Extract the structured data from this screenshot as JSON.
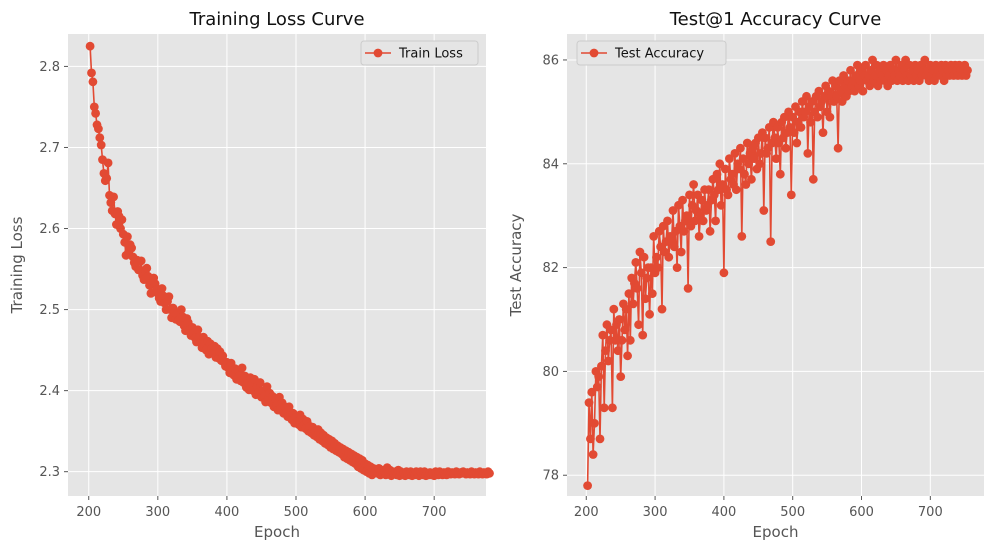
{
  "chart_data": [
    {
      "type": "line",
      "title": "Training Loss Curve",
      "xlabel": "Epoch",
      "ylabel": "Training Loss",
      "xlim": [
        170,
        775
      ],
      "ylim": [
        2.27,
        2.84
      ],
      "xticks": [
        200,
        300,
        400,
        500,
        600,
        700
      ],
      "yticks": [
        2.3,
        2.4,
        2.5,
        2.6,
        2.7,
        2.8
      ],
      "xtick_labels": [
        "200",
        "300",
        "400",
        "500",
        "600",
        "700"
      ],
      "ytick_labels": [
        "2.3",
        "2.4",
        "2.5",
        "2.6",
        "2.7",
        "2.8"
      ],
      "grid": true,
      "legend_position": "top-right",
      "color": "#E24A33",
      "series": [
        {
          "name": "Train Loss",
          "x_start": 202,
          "x_step": 2,
          "values": [
            2.825,
            2.792,
            2.781,
            2.75,
            2.742,
            2.728,
            2.723,
            2.712,
            2.703,
            2.685,
            2.668,
            2.659,
            2.662,
            2.681,
            2.641,
            2.632,
            2.622,
            2.639,
            2.618,
            2.605,
            2.621,
            2.615,
            2.6,
            2.611,
            2.593,
            2.583,
            2.567,
            2.59,
            2.572,
            2.58,
            2.576,
            2.565,
            2.558,
            2.553,
            2.561,
            2.549,
            2.549,
            2.56,
            2.542,
            2.537,
            2.548,
            2.551,
            2.541,
            2.53,
            2.52,
            2.535,
            2.539,
            2.532,
            2.525,
            2.52,
            2.514,
            2.51,
            2.526,
            2.517,
            2.508,
            2.5,
            2.51,
            2.516,
            2.5,
            2.49,
            2.502,
            2.497,
            2.488,
            2.495,
            2.487,
            2.485,
            2.5,
            2.491,
            2.48,
            2.474,
            2.489,
            2.484,
            2.475,
            2.468,
            2.478,
            2.471,
            2.465,
            2.46,
            2.475,
            2.466,
            2.46,
            2.453,
            2.466,
            2.458,
            2.45,
            2.461,
            2.445,
            2.458,
            2.452,
            2.447,
            2.455,
            2.441,
            2.452,
            2.44,
            2.448,
            2.437,
            2.443,
            2.435,
            2.43,
            2.435,
            2.428,
            2.422,
            2.434,
            2.425,
            2.419,
            2.427,
            2.414,
            2.425,
            2.418,
            2.412,
            2.428,
            2.41,
            2.418,
            2.404,
            2.41,
            2.401,
            2.416,
            2.408,
            2.4,
            2.414,
            2.395,
            2.405,
            2.398,
            2.41,
            2.392,
            2.4,
            2.393,
            2.386,
            2.405,
            2.39,
            2.397,
            2.385,
            2.393,
            2.38,
            2.39,
            2.382,
            2.376,
            2.392,
            2.378,
            2.385,
            2.372,
            2.38,
            2.373,
            2.368,
            2.38,
            2.37,
            2.364,
            2.372,
            2.36,
            2.367,
            2.362,
            2.358,
            2.37,
            2.355,
            2.365,
            2.358,
            2.353,
            2.362,
            2.35,
            2.356,
            2.348,
            2.355,
            2.345,
            2.35,
            2.343,
            2.352,
            2.34,
            2.348,
            2.338,
            2.345,
            2.335,
            2.342,
            2.333,
            2.34,
            2.33,
            2.338,
            2.328,
            2.335,
            2.326,
            2.332,
            2.324,
            2.33,
            2.322,
            2.328,
            2.318,
            2.326,
            2.316,
            2.324,
            2.314,
            2.322,
            2.312,
            2.32,
            2.31,
            2.318,
            2.306,
            2.316,
            2.304,
            2.314,
            2.302,
            2.31,
            2.3,
            2.308,
            2.298,
            2.306,
            2.296,
            2.304,
            2.3,
            2.302,
            2.298,
            2.304,
            2.296,
            2.302,
            2.298,
            2.3,
            2.296,
            2.305,
            2.298,
            2.302,
            2.295,
            2.3,
            2.297,
            2.3,
            2.296,
            2.302,
            2.295,
            2.3,
            2.296,
            2.298,
            2.295,
            2.3,
            2.297,
            2.296,
            2.3,
            2.295,
            2.298,
            2.296,
            2.3,
            2.297,
            2.295,
            2.3,
            2.298,
            2.296,
            2.3,
            2.295,
            2.298,
            2.296,
            2.299,
            2.296,
            2.298,
            2.295,
            2.3,
            2.297,
            2.296,
            2.3,
            2.298,
            2.296,
            2.299,
            2.297,
            2.296,
            2.3,
            2.298,
            2.297,
            2.299,
            2.298,
            2.297,
            2.3,
            2.298,
            2.297,
            2.299,
            2.298,
            2.3,
            2.298,
            2.297,
            2.299,
            2.298,
            2.297,
            2.3,
            2.298,
            2.297,
            2.299,
            2.298,
            2.297,
            2.3,
            2.298,
            2.297,
            2.299,
            2.298,
            2.297,
            2.3,
            2.298
          ]
        }
      ]
    },
    {
      "type": "line",
      "title": "Test@1 Accuracy Curve",
      "xlabel": "Epoch",
      "ylabel": "Test Accuracy",
      "xlim": [
        172,
        778
      ],
      "ylim": [
        77.6,
        86.5
      ],
      "xticks": [
        200,
        300,
        400,
        500,
        600,
        700
      ],
      "yticks": [
        78,
        80,
        82,
        84,
        86
      ],
      "xtick_labels": [
        "200",
        "300",
        "400",
        "500",
        "600",
        "700"
      ],
      "ytick_labels": [
        "78",
        "80",
        "82",
        "84",
        "86"
      ],
      "grid": true,
      "legend_position": "top-left",
      "color": "#E24A33",
      "series": [
        {
          "name": "Test Accuracy",
          "x_start": 202,
          "x_step": 2,
          "values": [
            77.8,
            79.4,
            78.7,
            79.6,
            78.4,
            79.0,
            80.0,
            79.7,
            79.9,
            78.7,
            80.1,
            80.7,
            79.3,
            80.4,
            80.9,
            80.2,
            80.6,
            80.8,
            79.3,
            81.2,
            80.6,
            80.9,
            80.4,
            81.0,
            79.9,
            80.6,
            81.3,
            80.8,
            81.2,
            80.3,
            81.5,
            80.6,
            81.8,
            81.3,
            81.7,
            82.1,
            81.6,
            80.9,
            82.3,
            81.9,
            80.7,
            82.2,
            81.4,
            81.8,
            82.0,
            81.1,
            82.0,
            81.5,
            82.6,
            81.9,
            82.2,
            82.0,
            82.7,
            82.4,
            81.2,
            82.8,
            82.3,
            82.5,
            82.9,
            82.2,
            82.6,
            82.5,
            83.1,
            82.4,
            82.7,
            82.0,
            83.2,
            82.8,
            82.3,
            83.3,
            82.7,
            82.9,
            83.0,
            81.6,
            83.4,
            82.8,
            83.2,
            83.6,
            82.9,
            83.1,
            83.4,
            82.6,
            83.0,
            83.3,
            82.9,
            83.5,
            83.1,
            83.2,
            83.5,
            82.7,
            83.3,
            83.7,
            83.4,
            82.9,
            83.8,
            83.5,
            84.0,
            83.2,
            83.6,
            81.9,
            83.9,
            83.5,
            83.4,
            84.1,
            83.7,
            83.8,
            83.6,
            84.2,
            83.5,
            84.0,
            83.9,
            84.3,
            82.6,
            84.1,
            83.8,
            83.6,
            84.4,
            84.0,
            84.2,
            83.7,
            84.3,
            84.1,
            84.4,
            83.9,
            84.5,
            84.0,
            84.2,
            84.6,
            83.1,
            84.5,
            84.2,
            84.3,
            84.7,
            82.5,
            84.4,
            84.8,
            84.5,
            84.1,
            84.7,
            84.4,
            83.8,
            84.8,
            84.5,
            84.9,
            84.3,
            84.6,
            85.0,
            84.7,
            83.4,
            84.9,
            84.6,
            85.1,
            84.4,
            84.8,
            85.0,
            84.7,
            85.2,
            84.9,
            85.0,
            85.3,
            84.2,
            85.1,
            84.8,
            85.2,
            83.7,
            85.0,
            85.3,
            84.9,
            85.4,
            85.1,
            85.2,
            84.6,
            85.3,
            85.5,
            85.0,
            85.4,
            84.9,
            85.3,
            85.6,
            85.2,
            85.5,
            85.3,
            84.3,
            85.6,
            85.4,
            85.2,
            85.7,
            85.5,
            85.3,
            85.6,
            85.4,
            85.8,
            85.5,
            85.6,
            85.4,
            85.7,
            85.9,
            85.5,
            85.6,
            85.8,
            85.4,
            85.7,
            85.9,
            85.6,
            85.7,
            85.5,
            85.8,
            86.0,
            85.6,
            85.7,
            85.9,
            85.5,
            85.8,
            85.6,
            85.7,
            85.9,
            85.6,
            85.8,
            85.5,
            85.7,
            85.9,
            85.6,
            85.8,
            85.7,
            86.0,
            85.6,
            85.8,
            85.7,
            85.9,
            85.6,
            85.8,
            86.0,
            85.7,
            85.6,
            85.9,
            85.7,
            85.8,
            85.6,
            85.9,
            85.7,
            85.8,
            85.6,
            85.9,
            85.7,
            85.8,
            86.0,
            85.7,
            85.8,
            85.6,
            85.9,
            85.7,
            85.8,
            85.6,
            85.9,
            85.7,
            85.8,
            85.7,
            85.9,
            85.8,
            85.6,
            85.9,
            85.7,
            85.8,
            85.7,
            85.9,
            85.8,
            85.7,
            85.9,
            85.8,
            85.7,
            85.9,
            85.8,
            85.7,
            85.8,
            85.9,
            85.7,
            85.8
          ]
        }
      ]
    }
  ]
}
